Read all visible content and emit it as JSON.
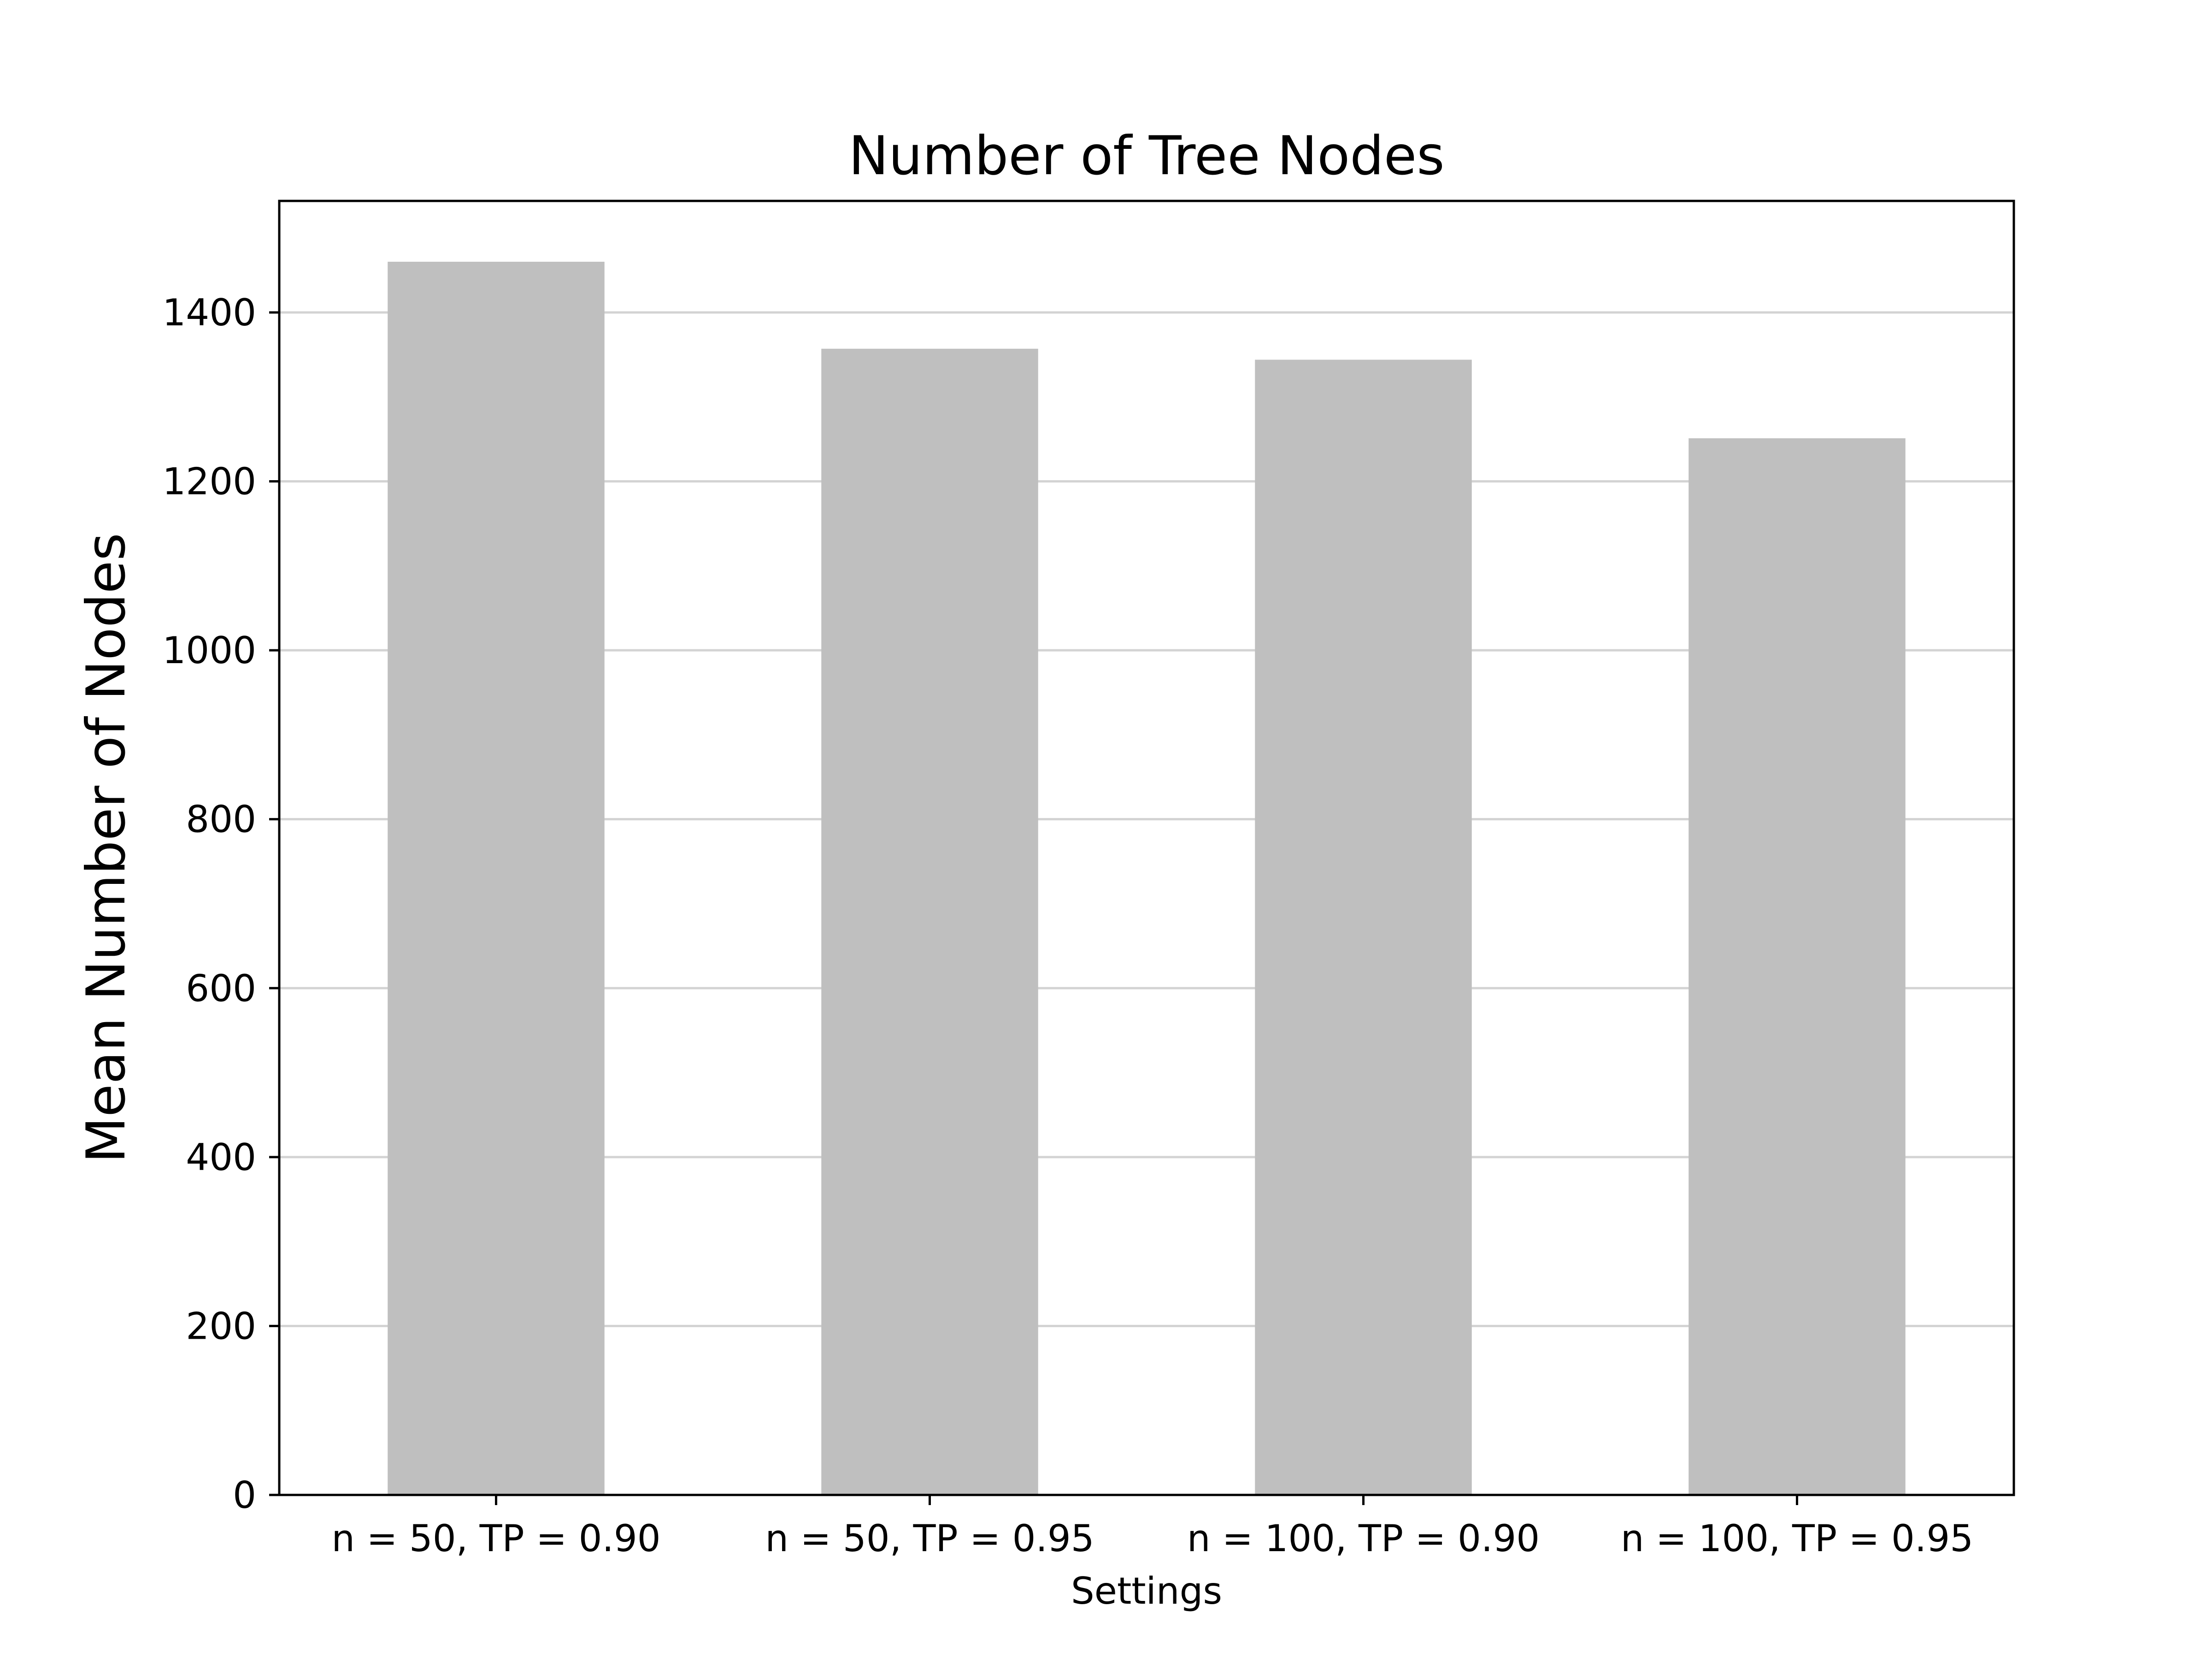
{
  "chart_data": {
    "type": "bar",
    "title": "Number of Tree Nodes",
    "xlabel": "Settings",
    "ylabel": "Mean Number of Nodes",
    "categories": [
      "n = 50, TP = 0.90",
      "n = 50, TP = 0.95",
      "n = 100, TP = 0.90",
      "n = 100, TP = 0.95"
    ],
    "values": [
      1460,
      1357,
      1344,
      1251
    ],
    "ylim": [
      0,
      1532
    ],
    "yticks": [
      0,
      200,
      400,
      600,
      800,
      1000,
      1200,
      1400
    ],
    "grid": "horizontal",
    "legend": "none",
    "colors": {
      "bar": "#bfbfbf",
      "grid": "#d3d3d3",
      "axis": "#000000",
      "text": "#000000",
      "background": "#ffffff"
    }
  }
}
